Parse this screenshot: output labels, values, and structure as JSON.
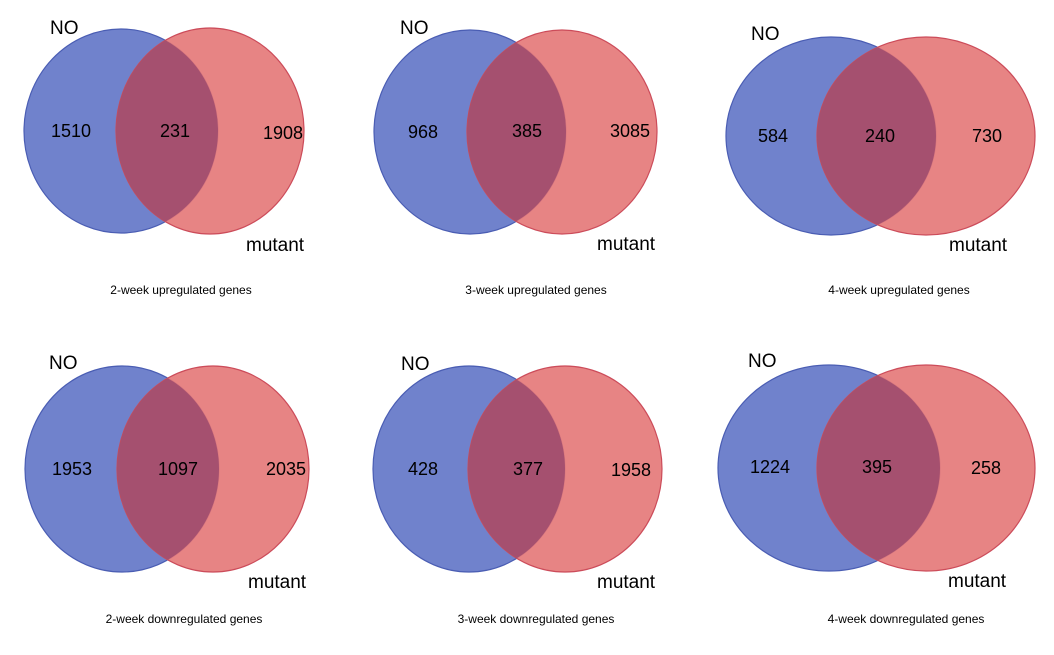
{
  "colors": {
    "set_a_fill": "#7082cc",
    "set_a_stroke": "#4a5db3",
    "set_b_fill": "#e57a7a",
    "set_b_stroke": "#cc4c5a",
    "overlap_tint": "#a5506f"
  },
  "venns": [
    {
      "label_a": "NO",
      "label_b": "mutant",
      "only_a": "1510",
      "both": "231",
      "only_b": "1908",
      "caption": "2-week upregulated genes"
    },
    {
      "label_a": "NO",
      "label_b": "mutant",
      "only_a": "968",
      "both": "385",
      "only_b": "3085",
      "caption": "3-week upregulated genes"
    },
    {
      "label_a": "NO",
      "label_b": "mutant",
      "only_a": "584",
      "both": "240",
      "only_b": "730",
      "caption": "4-week upregulated genes"
    },
    {
      "label_a": "NO",
      "label_b": "mutant",
      "only_a": "1953",
      "both": "1097",
      "only_b": "2035",
      "caption": "2-week downregulated genes"
    },
    {
      "label_a": "NO",
      "label_b": "mutant",
      "only_a": "428",
      "both": "377",
      "only_b": "1958",
      "caption": "3-week downregulated genes"
    },
    {
      "label_a": "NO",
      "label_b": "mutant",
      "only_a": "1224",
      "both": "395",
      "only_b": "258",
      "caption": "4-week downregulated genes"
    }
  ]
}
